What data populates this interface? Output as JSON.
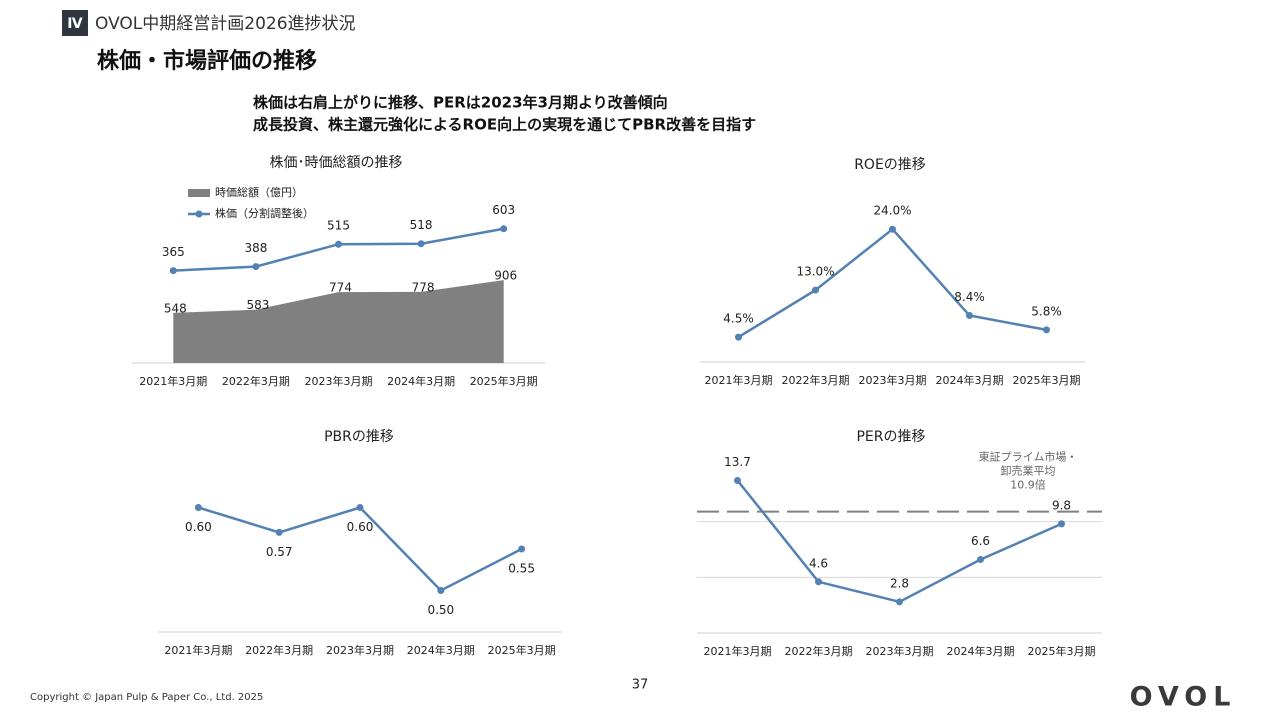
{
  "header": {
    "badge": "Ⅳ",
    "section": "OVOL中期経営計画2026進捗状況",
    "title": "株価・市場評価の推移"
  },
  "summary": [
    "株価は右肩上がりに推移、PERは2023年3月期より改善傾向",
    "成長投資、株主還元強化によるROE向上の実現を通じてPBR改善を目指す"
  ],
  "chart_data": [
    {
      "type": "area_line",
      "title": "株価･時価総額の推移",
      "categories": [
        "2021年3月期",
        "2022年3月期",
        "2023年3月期",
        "2024年3月期",
        "2025年3月期"
      ],
      "series": [
        {
          "name": "時価総額（億円）",
          "color": "#808080",
          "kind": "area",
          "values": [
            548,
            583,
            774,
            778,
            906
          ]
        },
        {
          "name": "株価（分割調整後）",
          "color": "#5381b3",
          "kind": "line",
          "axis": "y2",
          "values": [
            365,
            388,
            515,
            518,
            603
          ]
        }
      ],
      "ylim": [
        0,
        2000
      ],
      "y2lim": [
        -160,
        880
      ],
      "legend": "top-left",
      "label_position": "above"
    },
    {
      "type": "line",
      "title": "ROEの推移",
      "categories": [
        "2021年3月期",
        "2022年3月期",
        "2023年3月期",
        "2024年3月期",
        "2025年3月期"
      ],
      "series": [
        {
          "name": "ROE",
          "color": "#5381b3",
          "values": [
            4.5,
            13.0,
            24.0,
            8.4,
            5.8
          ],
          "value_labels": [
            "4.5%",
            "13.0%",
            "24.0%",
            "8.4%",
            "5.8%"
          ]
        }
      ],
      "ylim": [
        0,
        30
      ],
      "label_position": "above"
    },
    {
      "type": "line",
      "title": "PBRの推移",
      "categories": [
        "2021年3月期",
        "2022年3月期",
        "2023年3月期",
        "2024年3月期",
        "2025年3月期"
      ],
      "series": [
        {
          "name": "PBR",
          "color": "#5381b3",
          "values": [
            0.6,
            0.57,
            0.6,
            0.5,
            0.55
          ],
          "value_labels": [
            "0.60",
            "0.57",
            "0.60",
            "0.50",
            "0.55"
          ]
        }
      ],
      "ylim": [
        0.45,
        0.65
      ],
      "label_position": "below"
    },
    {
      "type": "line",
      "title": "PERの推移",
      "categories": [
        "2021年3月期",
        "2022年3月期",
        "2023年3月期",
        "2024年3月期",
        "2025年3月期"
      ],
      "series": [
        {
          "name": "PER",
          "color": "#5381b3",
          "values": [
            13.7,
            4.6,
            2.8,
            6.6,
            9.8
          ]
        }
      ],
      "ylim": [
        0,
        15
      ],
      "yticks": [
        0,
        5,
        10
      ],
      "grid": true,
      "tick_labels": false,
      "label_position": "above",
      "reference": {
        "value": 10.9,
        "color": "#808080",
        "label": [
          "東証プライム市場・",
          "卸売業平均",
          "10.9倍"
        ]
      }
    }
  ],
  "footer": {
    "copyright": "Copyright © Japan Pulp & Paper Co., Ltd. 2025",
    "page": "37",
    "logo": "OVOL"
  }
}
